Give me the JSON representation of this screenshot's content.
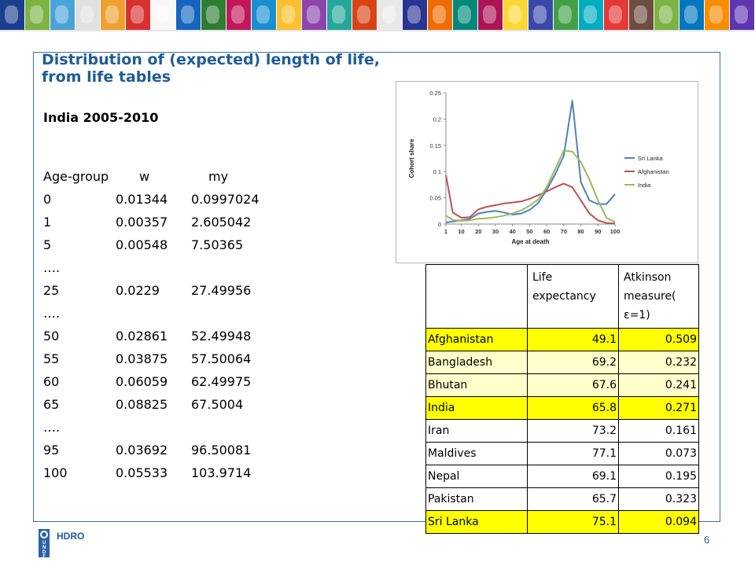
{
  "banner": {
    "tile_colors": [
      "#1b3f8f",
      "#7cb342",
      "#4aa3d8",
      "#e0e0e0",
      "#f0a030",
      "#d93030",
      "#f7f7f7",
      "#1565c0",
      "#2e7d32",
      "#c2185b",
      "#1a8fcf",
      "#fbc02d",
      "#8e44ad",
      "#26a69a",
      "#d84315",
      "#e8e8e8",
      "#283593",
      "#ef6c00",
      "#00897b",
      "#ad1457",
      "#fdd835",
      "#3949ab",
      "#43a047",
      "#00acc1",
      "#e53935",
      "#6d4c41",
      "#7cb342",
      "#0277bd",
      "#fb8c00",
      "#5e35b1"
    ]
  },
  "slide": {
    "title_line1": "Distribution of (expected) length of life,",
    "title_line2": "from life tables",
    "subtitle": "India 2005-2010"
  },
  "life_table": {
    "headers": [
      "Age-group",
      "w",
      "my"
    ],
    "rows": [
      [
        "0",
        "0.01344",
        "0.0997024"
      ],
      [
        "1",
        "0.00357",
        "2.605042"
      ],
      [
        "5",
        "0.00548",
        "7.50365"
      ],
      [
        "….",
        "",
        ""
      ],
      [
        "25",
        "0.0229",
        "27.49956"
      ],
      [
        "….",
        "",
        ""
      ],
      [
        "50",
        "0.02861",
        "52.49948"
      ],
      [
        "55",
        "0.03875",
        "57.50064"
      ],
      [
        "60",
        "0.06059",
        "62.49975"
      ],
      [
        "65",
        "0.08825",
        "67.5004"
      ],
      [
        "….",
        "",
        ""
      ],
      [
        "95",
        "0.03692",
        "96.50081"
      ],
      [
        "100",
        "0.05533",
        "103.9714"
      ]
    ]
  },
  "chart_data": {
    "type": "line",
    "title": "",
    "xlabel": "Age at death",
    "ylabel": "Cohort share",
    "x": [
      1,
      5,
      10,
      15,
      20,
      25,
      30,
      35,
      40,
      45,
      50,
      55,
      60,
      65,
      70,
      75,
      80,
      85,
      90,
      95,
      100
    ],
    "x_tick_labels": [
      "1",
      "10",
      "20",
      "30",
      "40",
      "50",
      "60",
      "70",
      "80",
      "90",
      "100"
    ],
    "x_tick_values": [
      1,
      10,
      20,
      30,
      40,
      50,
      60,
      70,
      80,
      90,
      100
    ],
    "y_ticks": [
      "0",
      "0.05",
      "0.1",
      "0.15",
      "0.2",
      "0.25"
    ],
    "ylim": [
      0,
      0.25
    ],
    "xlim": [
      1,
      100
    ],
    "legend_position": "right",
    "grid": false,
    "series": [
      {
        "name": "Sri Lanka",
        "color": "#4f81bd",
        "values": [
          0.003,
          0.005,
          0.007,
          0.01,
          0.02,
          0.023,
          0.025,
          0.022,
          0.018,
          0.02,
          0.027,
          0.04,
          0.065,
          0.095,
          0.13,
          0.235,
          0.08,
          0.045,
          0.038,
          0.038,
          0.057
        ]
      },
      {
        "name": "Afghanistan",
        "color": "#c0504d",
        "values": [
          0.093,
          0.022,
          0.012,
          0.013,
          0.028,
          0.033,
          0.036,
          0.039,
          0.041,
          0.043,
          0.048,
          0.055,
          0.062,
          0.07,
          0.077,
          0.07,
          0.045,
          0.02,
          0.007,
          0.002,
          0.001
        ]
      },
      {
        "name": "India",
        "color": "#9bbb59",
        "values": [
          0.016,
          0.008,
          0.006,
          0.007,
          0.01,
          0.011,
          0.013,
          0.016,
          0.02,
          0.026,
          0.035,
          0.047,
          0.07,
          0.105,
          0.14,
          0.138,
          0.118,
          0.085,
          0.045,
          0.012,
          0.004
        ]
      }
    ]
  },
  "country_table": {
    "headers": [
      "",
      "Life expectancy",
      "Atkinson measure( ε=1)"
    ],
    "rows": [
      {
        "country": "Afghanistan",
        "life": "49.1",
        "atkinson": "0.509",
        "style": "hl"
      },
      {
        "country": "Bangladesh",
        "life": "69.2",
        "atkinson": "0.232",
        "style": "lt"
      },
      {
        "country": "Bhutan",
        "life": "67.6",
        "atkinson": "0.241",
        "style": "lt"
      },
      {
        "country": "India",
        "life": "65.8",
        "atkinson": "0.271",
        "style": "hl"
      },
      {
        "country": "Iran",
        "life": "73.2",
        "atkinson": "0.161",
        "style": "wh"
      },
      {
        "country": "Maldives",
        "life": "77.1",
        "atkinson": "0.073",
        "style": "wh"
      },
      {
        "country": "Nepal",
        "life": "69.1",
        "atkinson": "0.195",
        "style": "wh"
      },
      {
        "country": "Pakistan",
        "life": "65.7",
        "atkinson": "0.323",
        "style": "wh"
      },
      {
        "country": "Sri Lanka",
        "life": "75.1",
        "atkinson": "0.094",
        "style": "hl"
      }
    ]
  },
  "footer": {
    "logo_letters": [
      "U",
      "N",
      "D",
      "P"
    ],
    "label": "HDRO",
    "page_number": "6"
  }
}
